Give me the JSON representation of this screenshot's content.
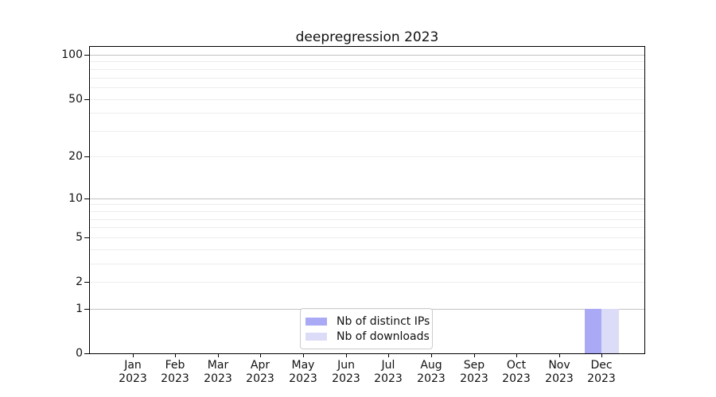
{
  "chart_data": {
    "type": "bar",
    "title": "deepregression 2023",
    "categories": [
      "Jan",
      "Feb",
      "Mar",
      "Apr",
      "May",
      "Jun",
      "Jul",
      "Aug",
      "Sep",
      "Oct",
      "Nov",
      "Dec"
    ],
    "category_year": "2023",
    "series": [
      {
        "name": "Nb of distinct IPs",
        "color": "#a9a9f5",
        "values": [
          0,
          0,
          0,
          0,
          0,
          0,
          0,
          0,
          0,
          0,
          0,
          1
        ]
      },
      {
        "name": "Nb of downloads",
        "color": "#dcdcf8",
        "values": [
          0,
          0,
          0,
          0,
          0,
          0,
          0,
          0,
          0,
          0,
          0,
          1
        ]
      }
    ],
    "xlabel": "",
    "ylabel": "",
    "y_scale": "log1p",
    "ylim": [
      0,
      113
    ],
    "y_tick_labels": [
      0,
      1,
      2,
      5,
      10,
      20,
      50,
      100
    ],
    "y_major_gridlines": [
      1,
      10,
      100
    ],
    "y_minor_gridlines": [
      2,
      3,
      4,
      5,
      6,
      7,
      8,
      9,
      20,
      30,
      40,
      50,
      60,
      70,
      80,
      90
    ],
    "grid": true,
    "legend_position": "inside-bottom-center",
    "colors": {
      "major_grid": "#c2c2c2",
      "minor_grid": "#ededed",
      "axis": "#000000",
      "text": "#111111",
      "background": "#ffffff"
    }
  }
}
